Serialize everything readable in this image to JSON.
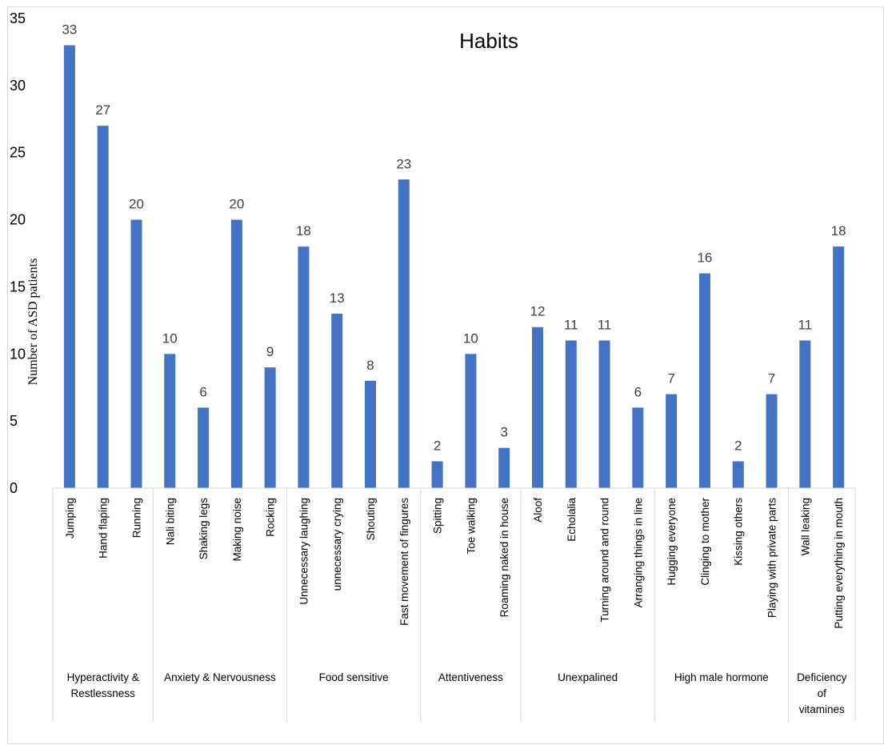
{
  "chart_data": {
    "type": "bar",
    "title": "Habits",
    "xlabel": "",
    "ylabel": "Number of ASD patients",
    "ylim": [
      0,
      35
    ],
    "y_ticks": [
      "0",
      "5",
      "10",
      "15",
      "20",
      "25",
      "30",
      "35"
    ],
    "grid": false,
    "legend": "none",
    "bar_color": "#4472c4",
    "categories": [
      "Jumping",
      "Hand flaping",
      "Running",
      "Nali biting",
      "Shaking legs",
      "Making noise",
      "Rocking",
      "Unnecessary laughing",
      "unnecessary crying",
      "Shouting",
      "Fast movement of fingures",
      "Spitting",
      "Toe walking",
      "Roaming naked in house",
      "Aloof",
      "Echolalia",
      "Turning around and round",
      "Arranging things in line",
      "Hugging everyone",
      "Clinging to mother",
      "Kissing others",
      "Playing with private parts",
      "Wall leaking",
      "Putting everything in mouth"
    ],
    "values": [
      33,
      27,
      20,
      10,
      6,
      20,
      9,
      18,
      13,
      8,
      23,
      2,
      10,
      3,
      12,
      11,
      11,
      6,
      7,
      16,
      2,
      7,
      11,
      18
    ],
    "groups": [
      {
        "label_lines": [
          "Hyperactivity &",
          "Restlessness"
        ],
        "count": 3
      },
      {
        "label_lines": [
          "Anxiety & Nervousness"
        ],
        "count": 4
      },
      {
        "label_lines": [
          "Food sensitive"
        ],
        "count": 4
      },
      {
        "label_lines": [
          "Attentiveness"
        ],
        "count": 3
      },
      {
        "label_lines": [
          "Unexpalined"
        ],
        "count": 4
      },
      {
        "label_lines": [
          "High male hormone"
        ],
        "count": 4
      },
      {
        "label_lines": [
          "Deficiency",
          "of",
          "vitamines"
        ],
        "count": 2
      }
    ]
  }
}
